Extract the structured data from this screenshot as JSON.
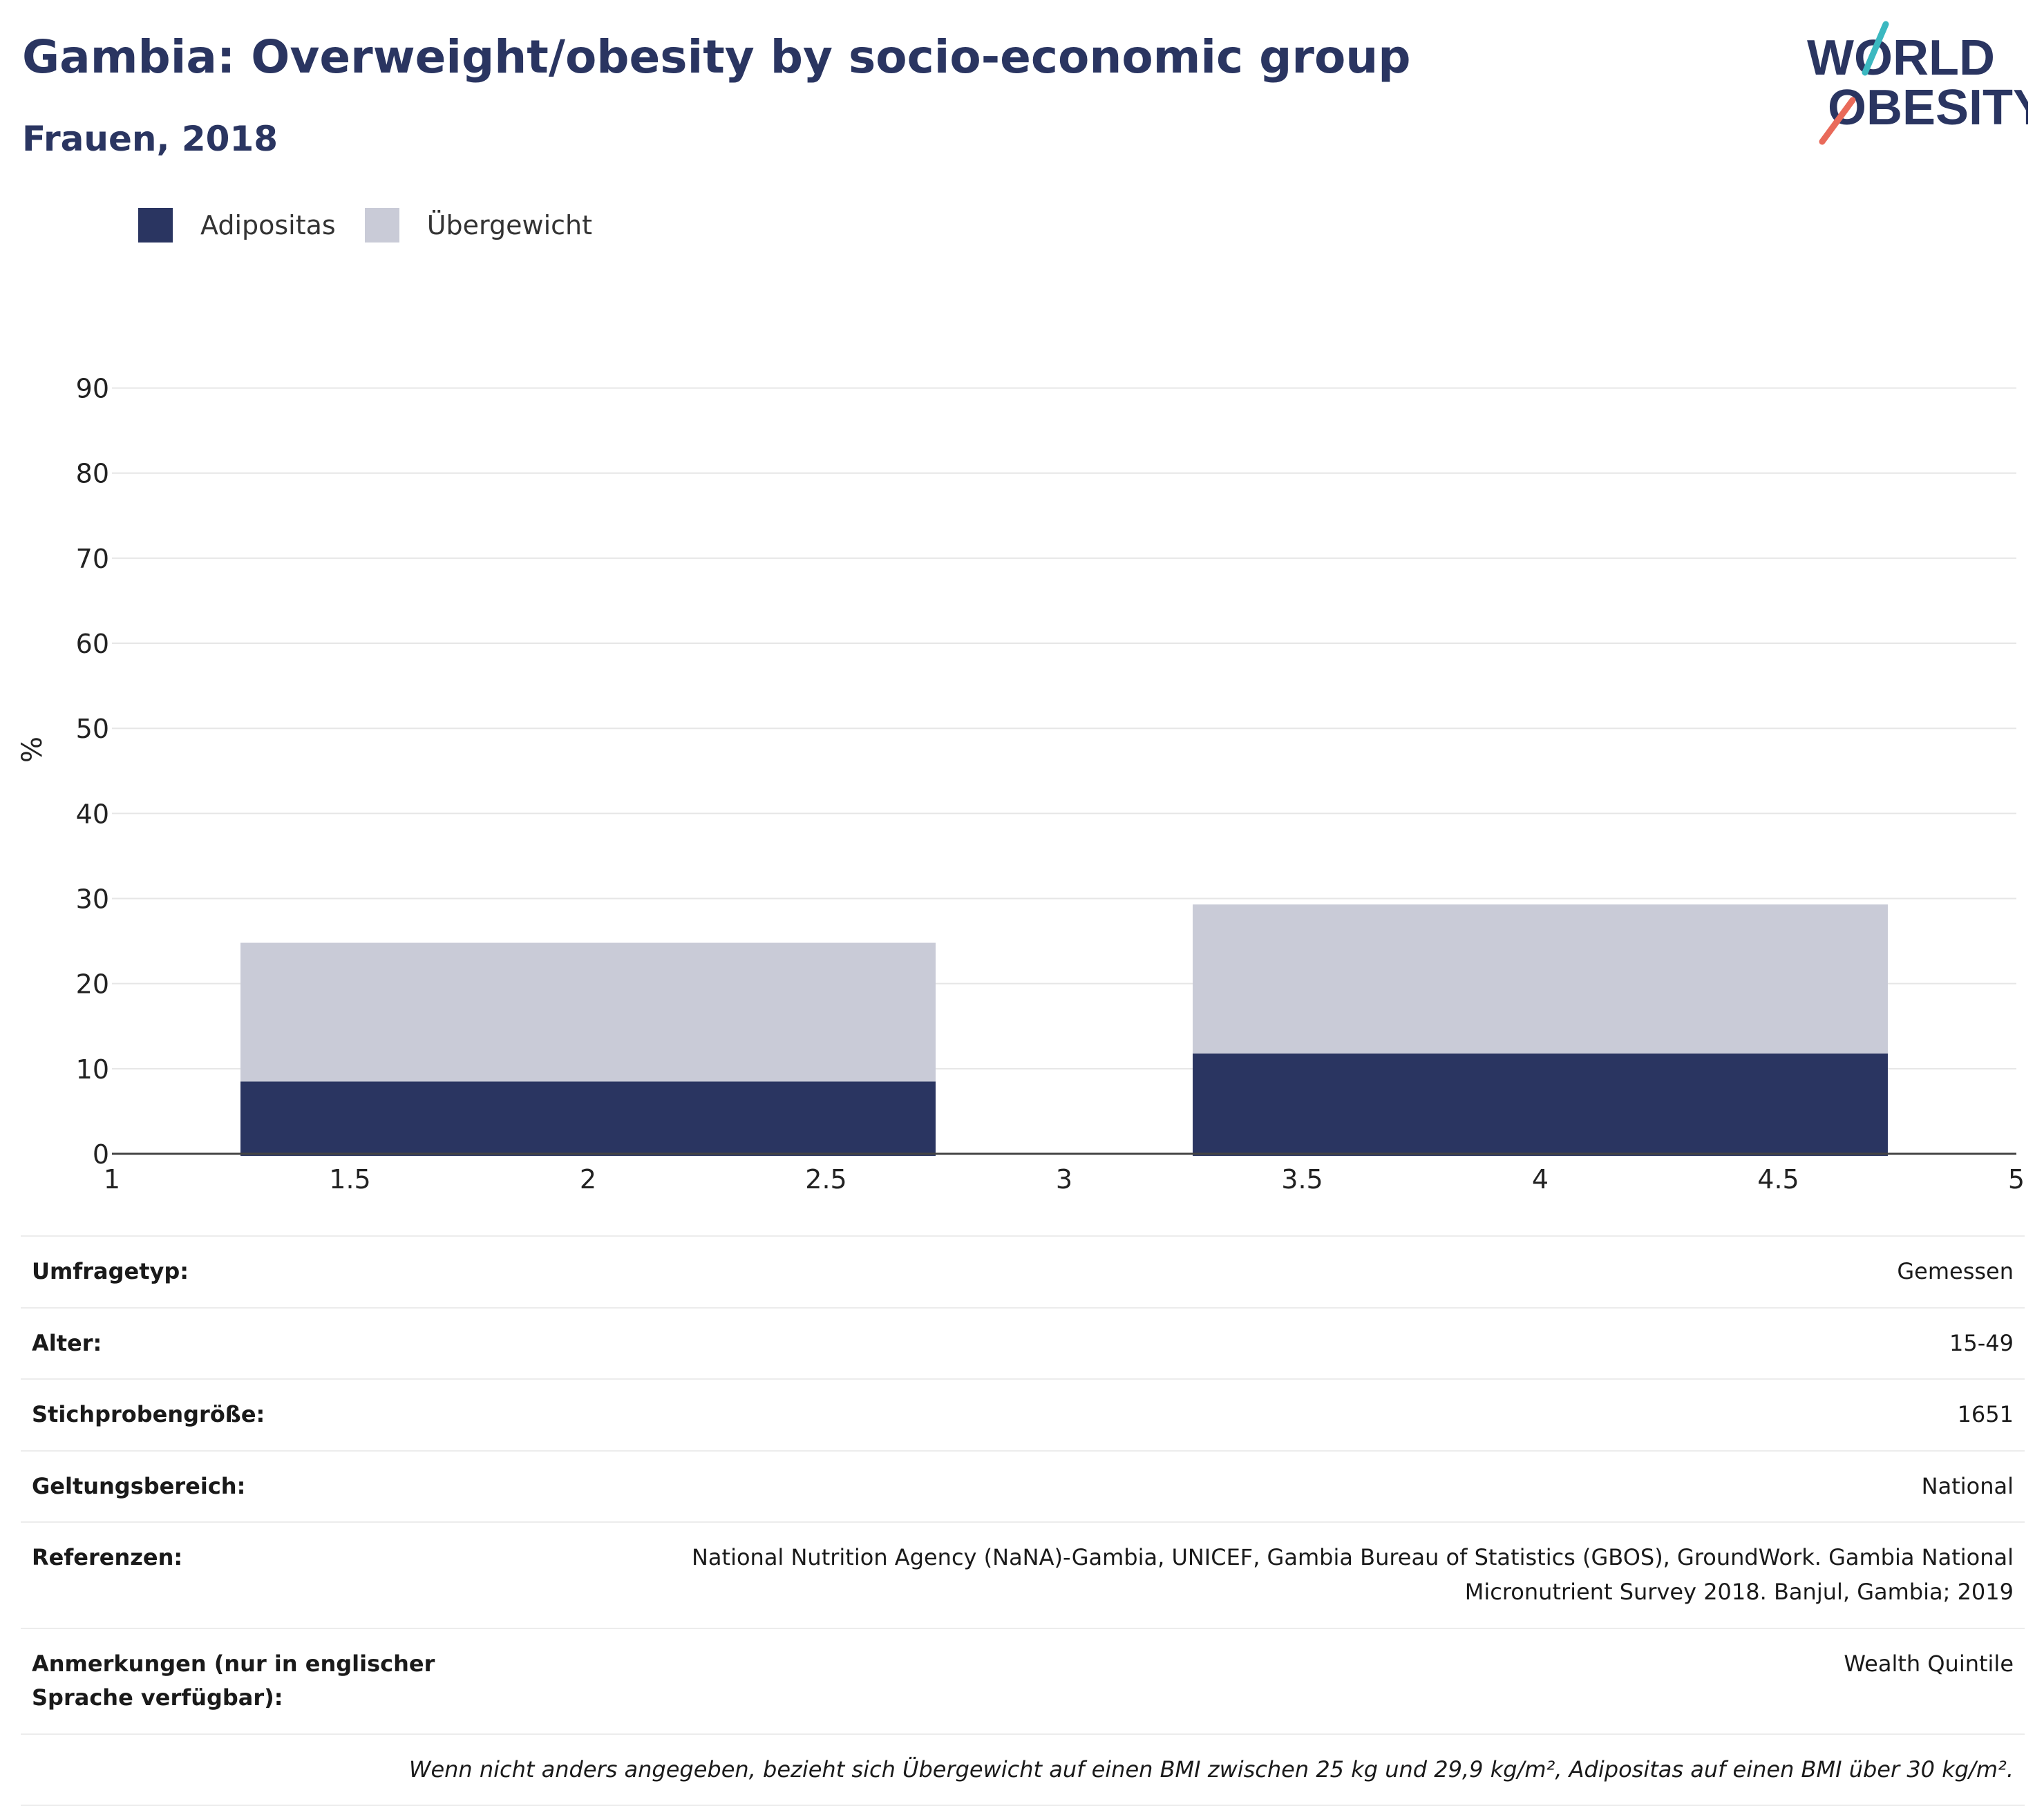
{
  "header": {
    "title": "Gambia: Overweight/obesity by socio-economic group",
    "subtitle": "Frauen, 2018"
  },
  "logo": {
    "line1": "WORLD",
    "line2": "OBESITY",
    "colors": {
      "text": "#2a3561",
      "slash_top": "#3bb8c0",
      "slash_bottom": "#e96a5a"
    }
  },
  "legend": [
    {
      "label": "Adipositas",
      "color": "#2a3561"
    },
    {
      "label": "Übergewicht",
      "color": "#c9cbd7"
    }
  ],
  "chart_data": {
    "type": "bar",
    "stacked": true,
    "title": "",
    "xlabel": "",
    "ylabel": "%",
    "xlim": [
      1,
      5
    ],
    "ylim": [
      0,
      95
    ],
    "grid": true,
    "legend_position": "top-left",
    "x_ticks": [
      "1",
      "1.5",
      "2",
      "2.5",
      "3",
      "3.5",
      "4",
      "4.5",
      "5"
    ],
    "y_ticks": [
      "0",
      "10",
      "20",
      "30",
      "40",
      "50",
      "60",
      "70",
      "80",
      "90"
    ],
    "bars": [
      {
        "x_start": 1.27,
        "x_end": 2.73
      },
      {
        "x_start": 3.27,
        "x_end": 4.73
      }
    ],
    "series": [
      {
        "name": "Adipositas",
        "color": "#2a3561",
        "values": [
          8.5,
          11.8
        ]
      },
      {
        "name": "Übergewicht",
        "color": "#c9cbd7",
        "values": [
          16.3,
          17.5
        ]
      }
    ]
  },
  "info_table": {
    "rows": [
      {
        "key": "Umfragetyp:",
        "value": "Gemessen"
      },
      {
        "key": "Alter:",
        "value": "15-49"
      },
      {
        "key": "Stichprobengröße:",
        "value": "1651"
      },
      {
        "key": "Geltungsbereich:",
        "value": "National"
      },
      {
        "key": "Referenzen:",
        "value": "National Nutrition Agency (NaNA)-Gambia, UNICEF, Gambia Bureau of Statistics (GBOS), GroundWork. Gambia National Micronutrient Survey 2018. Banjul, Gambia; 2019"
      },
      {
        "key": "Anmerkungen (nur in englischer Sprache verfügbar):",
        "value": "Wealth Quintile"
      }
    ],
    "footnote": "Wenn nicht anders angegeben, bezieht sich Übergewicht auf einen BMI zwischen 25 kg und 29,9 kg/m², Adipositas auf einen BMI über 30 kg/m²."
  }
}
